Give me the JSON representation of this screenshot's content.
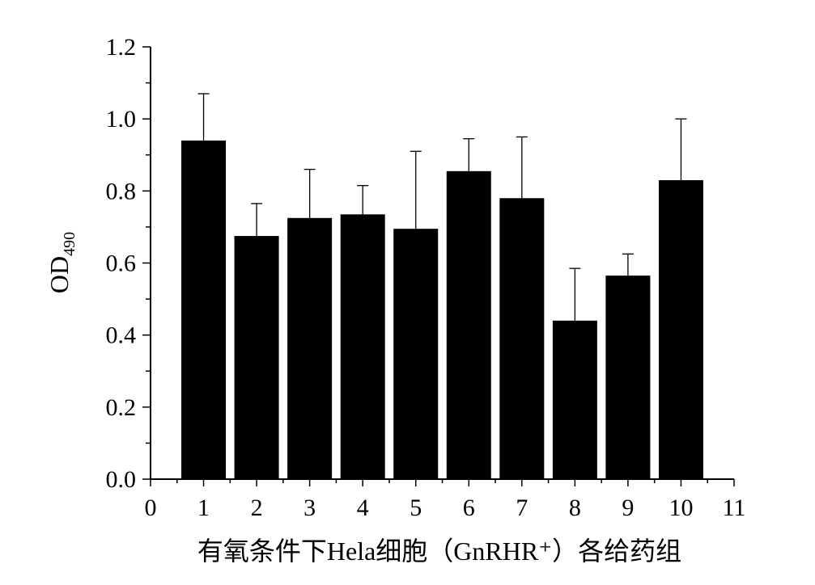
{
  "chart_data": {
    "type": "bar",
    "xlabel": "有氧条件下Hela细胞（GnRHR⁺）各给药组",
    "ylabel": "OD",
    "ylabel_subscript": "490",
    "xlim": [
      0,
      11
    ],
    "ylim": [
      0,
      1.2
    ],
    "xticks": [
      "0",
      "1",
      "2",
      "3",
      "4",
      "5",
      "6",
      "7",
      "8",
      "9",
      "10",
      "11"
    ],
    "yticks": [
      "0.0",
      "0.2",
      "0.4",
      "0.6",
      "0.8",
      "1.0",
      "1.2"
    ],
    "bar_color": "#000000",
    "grid": false,
    "bars": [
      {
        "x": 1,
        "value": 0.94,
        "error": 0.13
      },
      {
        "x": 2,
        "value": 0.675,
        "error": 0.09
      },
      {
        "x": 3,
        "value": 0.725,
        "error": 0.135
      },
      {
        "x": 4,
        "value": 0.735,
        "error": 0.08
      },
      {
        "x": 5,
        "value": 0.695,
        "error": 0.215
      },
      {
        "x": 6,
        "value": 0.855,
        "error": 0.09
      },
      {
        "x": 7,
        "value": 0.78,
        "error": 0.17
      },
      {
        "x": 8,
        "value": 0.44,
        "error": 0.145
      },
      {
        "x": 9,
        "value": 0.565,
        "error": 0.06
      },
      {
        "x": 10,
        "value": 0.83,
        "error": 0.17
      }
    ]
  }
}
